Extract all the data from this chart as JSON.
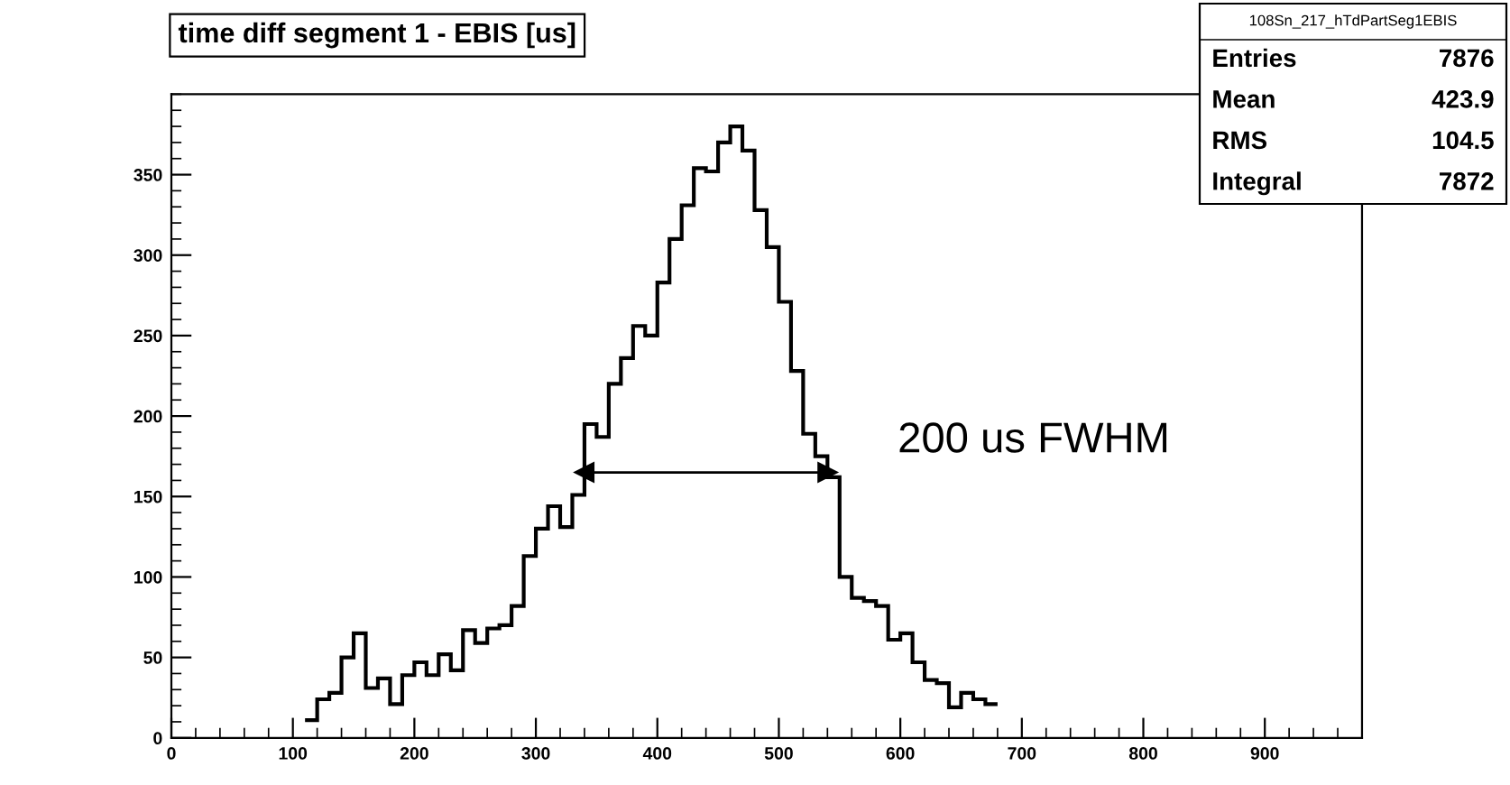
{
  "chart_data": {
    "type": "histogram",
    "title": "time diff segment 1 - EBIS [us]",
    "bins": [
      110,
      120,
      130,
      140,
      150,
      160,
      170,
      180,
      190,
      200,
      210,
      220,
      230,
      240,
      250,
      260,
      270,
      280,
      290,
      300,
      310,
      320,
      330,
      340,
      350,
      360,
      370,
      380,
      390,
      400,
      410,
      420,
      430,
      440,
      450,
      460,
      470,
      480,
      490,
      500,
      510,
      520,
      530,
      540,
      550,
      560,
      570,
      580,
      590,
      600,
      610,
      620,
      630,
      640,
      650,
      660,
      670,
      680
    ],
    "values": [
      11,
      24,
      28,
      50,
      65,
      31,
      37,
      21,
      39,
      47,
      39,
      52,
      42,
      67,
      59,
      68,
      70,
      82,
      113,
      130,
      144,
      131,
      151,
      195,
      187,
      220,
      236,
      256,
      250,
      283,
      310,
      331,
      354,
      352,
      370,
      380,
      365,
      328,
      305,
      271,
      228,
      189,
      175,
      162,
      100,
      87,
      85,
      82,
      61,
      65,
      47,
      36,
      34,
      19,
      28,
      24,
      21
    ],
    "color": "#000000",
    "series": [
      {
        "type": "line",
        "x": [
          340,
          540
        ],
        "values": [
          165,
          165
        ],
        "color": "#000000",
        "marker": "triangle"
      }
    ],
    "annotations": [
      "200 us FWHM",
      "108Sn_217_hTdPartSeg1EBIS",
      "Entries",
      "7876",
      "Mean",
      "423.9",
      "RMS",
      "104.5",
      "Integral",
      "7872"
    ],
    "xlim": [
      0,
      980
    ],
    "ylim": [
      0,
      400
    ],
    "xticks": [
      0,
      100,
      200,
      300,
      400,
      500,
      600,
      700,
      800,
      900
    ],
    "yticks": [
      0,
      50,
      100,
      150,
      200,
      250,
      300,
      350
    ],
    "grid": false,
    "legend": false
  }
}
